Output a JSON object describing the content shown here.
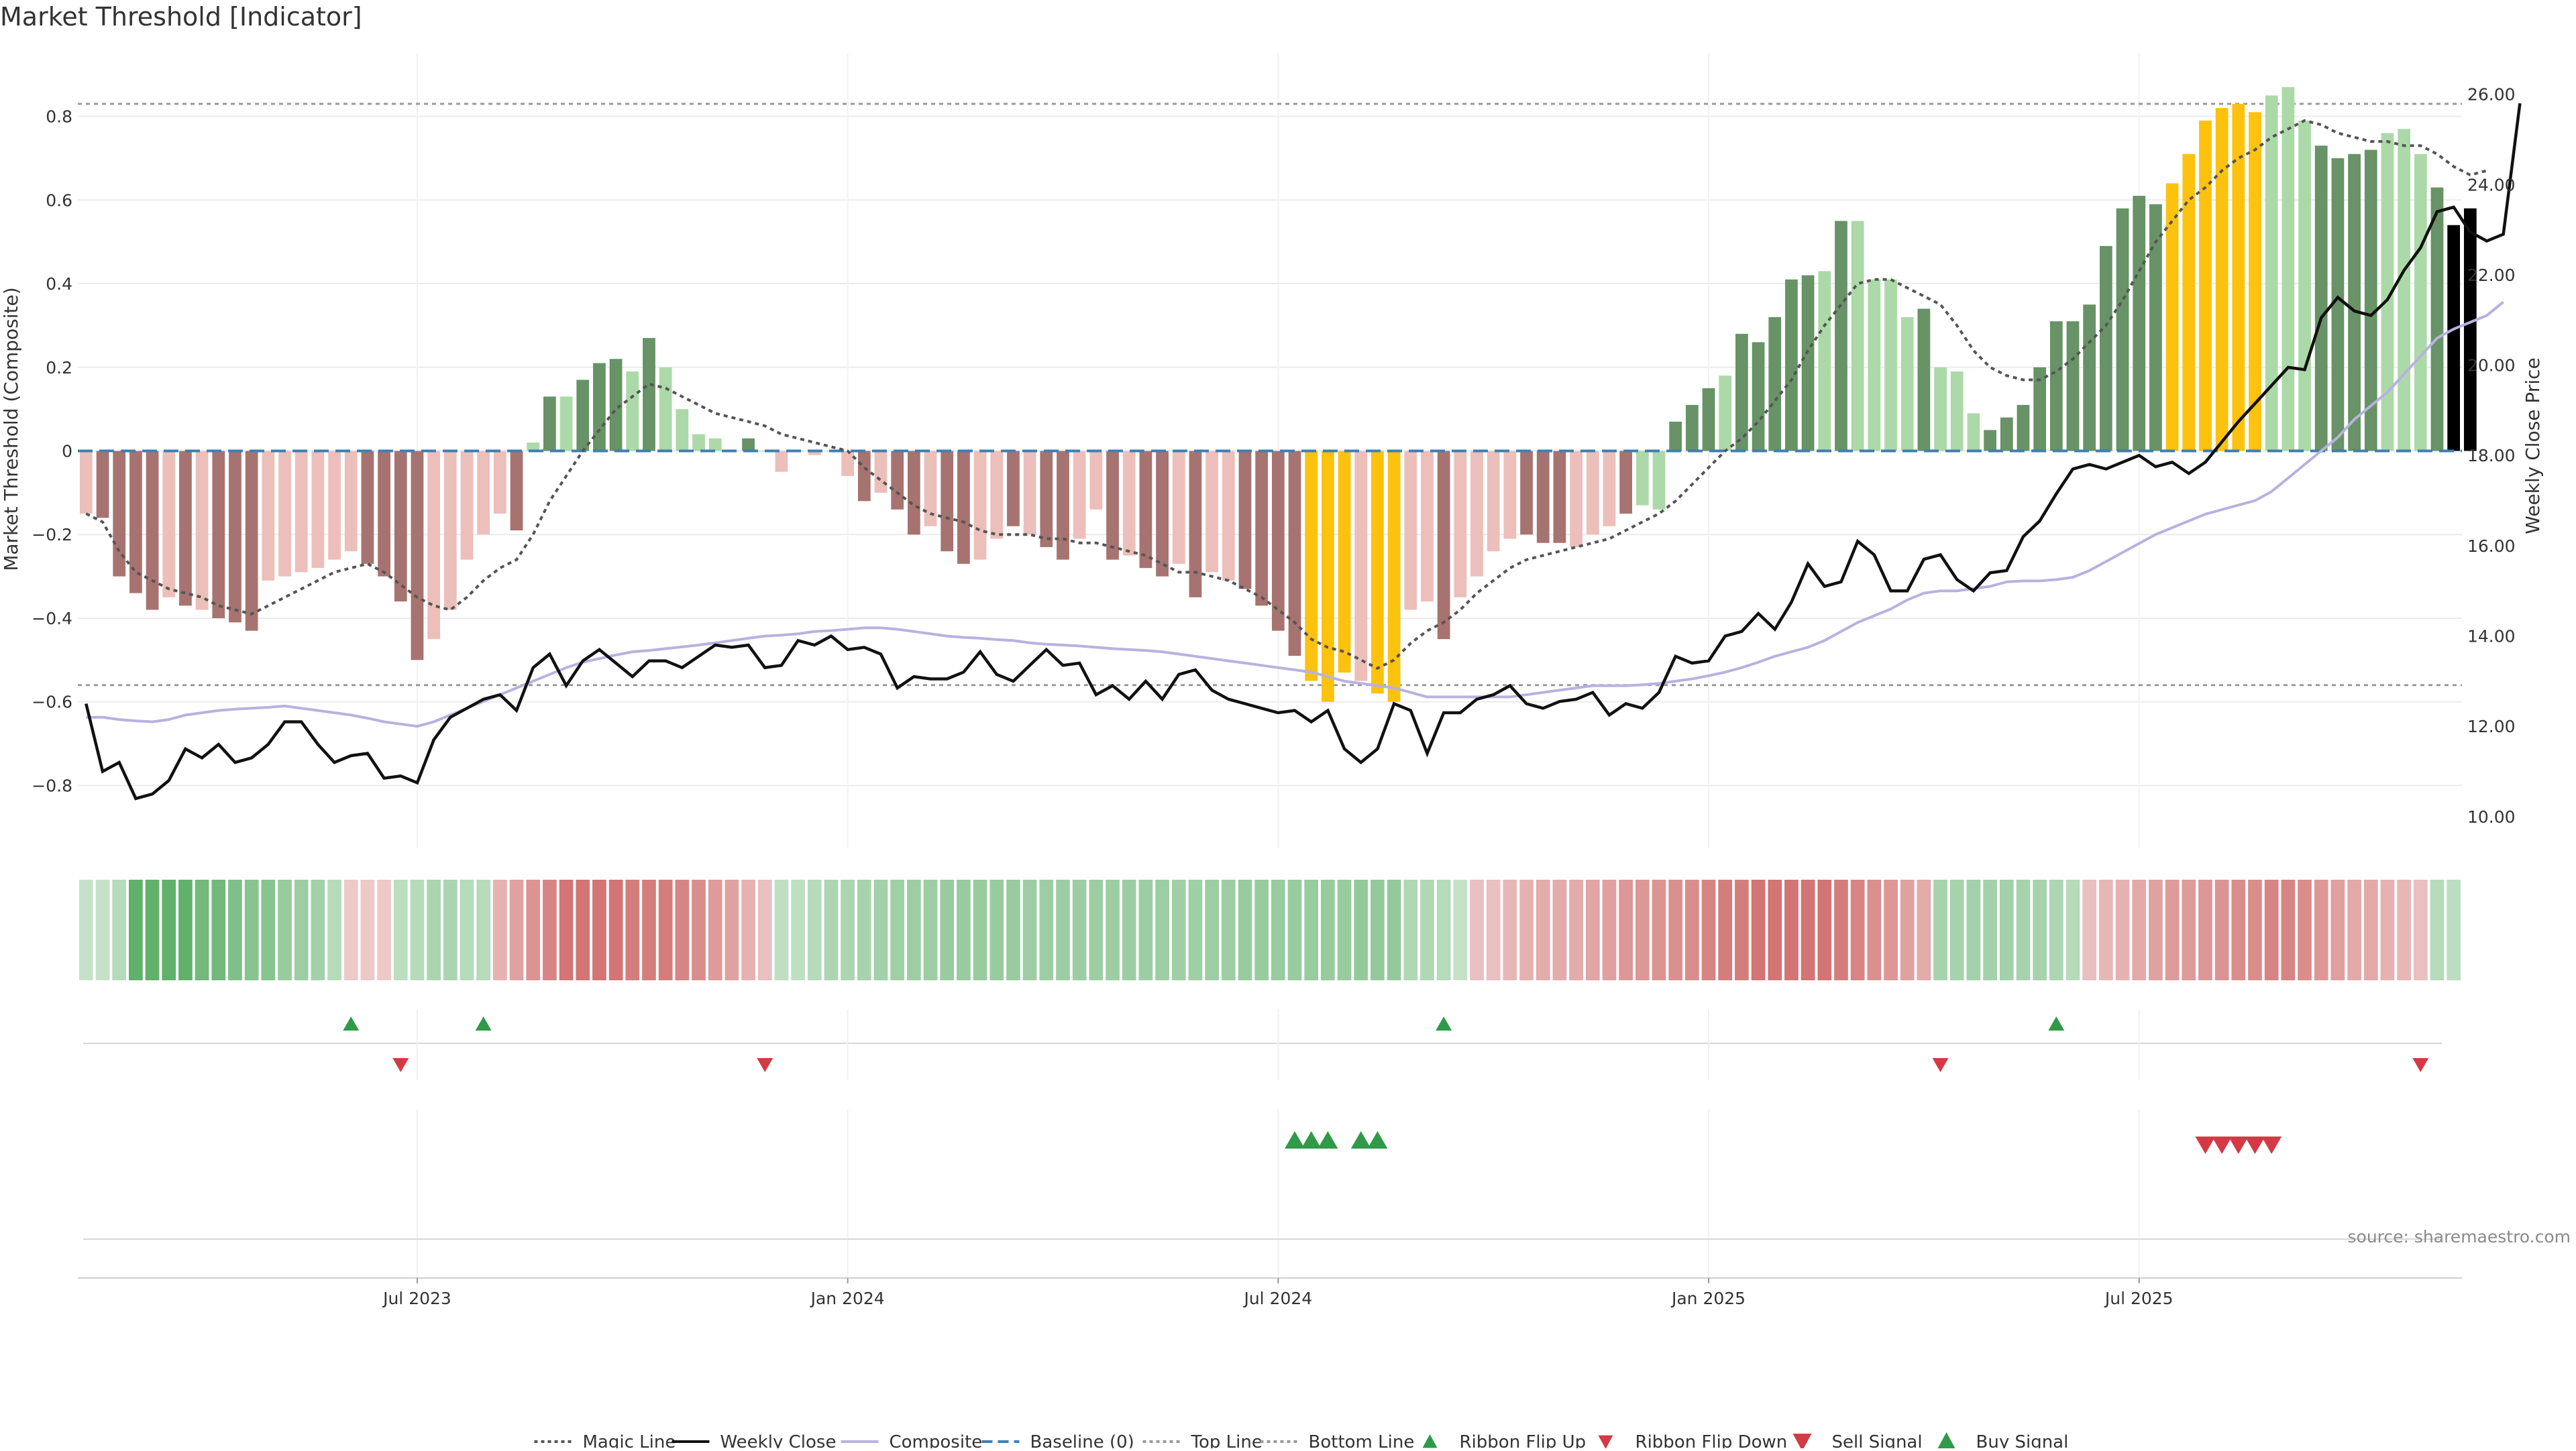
{
  "chart_data": {
    "type": "bar",
    "title": "Market Threshold [Indicator]",
    "ylabel_left": "Market Threshold (Composite)",
    "ylabel_right": "Weekly Close Price",
    "ylim_left": [
      -0.95,
      0.95
    ],
    "ylim_right": [
      9.3,
      26.9
    ],
    "left_ticks": [
      0.8,
      0.6,
      0.4,
      0.2,
      0,
      -0.2,
      -0.4,
      -0.6,
      -0.8
    ],
    "left_tick_labels": [
      "0.8",
      "0.6",
      "0.4",
      "0.2",
      "0",
      "−0.2",
      "−0.4",
      "−0.6",
      "−0.8"
    ],
    "right_ticks": [
      26,
      24,
      22,
      20,
      18,
      16,
      14,
      12,
      10
    ],
    "right_tick_labels": [
      "26.00",
      "24.00",
      "22.00",
      "20.00",
      "18.00",
      "16.00",
      "14.00",
      "12.00",
      "10.00"
    ],
    "x_tick_labels": [
      "Jul 2023",
      "Jan 2024",
      "Jul 2024",
      "Jan 2025",
      "Jul 2025"
    ],
    "x_tick_weeks": [
      20,
      46,
      72,
      98,
      124
    ],
    "weeks": 144,
    "top_line": 0.83,
    "bottom_line": -0.56,
    "baseline": 0,
    "bar_values": [
      -0.15,
      -0.16,
      -0.3,
      -0.34,
      -0.38,
      -0.35,
      -0.37,
      -0.38,
      -0.4,
      -0.41,
      -0.43,
      -0.31,
      -0.3,
      -0.29,
      -0.28,
      -0.26,
      -0.24,
      -0.27,
      -0.3,
      -0.36,
      -0.5,
      -0.45,
      -0.38,
      -0.26,
      -0.2,
      -0.15,
      -0.19,
      0.02,
      0.13,
      0.13,
      0.17,
      0.21,
      0.22,
      0.19,
      0.27,
      0.2,
      0.1,
      0.04,
      0.03,
      0,
      0.03,
      0,
      -0.05,
      0,
      -0.01,
      0,
      -0.06,
      -0.12,
      -0.1,
      -0.14,
      -0.2,
      -0.18,
      -0.24,
      -0.27,
      -0.26,
      -0.21,
      -0.18,
      -0.2,
      -0.23,
      -0.26,
      -0.21,
      -0.14,
      -0.26,
      -0.25,
      -0.28,
      -0.3,
      -0.27,
      -0.35,
      -0.29,
      -0.31,
      -0.33,
      -0.37,
      -0.43,
      -0.49,
      -0.55,
      -0.6,
      -0.53,
      -0.55,
      -0.58,
      -0.6,
      -0.38,
      -0.36,
      -0.45,
      -0.35,
      -0.3,
      -0.24,
      -0.21,
      -0.2,
      -0.22,
      -0.22,
      -0.23,
      -0.2,
      -0.18,
      -0.15,
      -0.13,
      -0.14,
      0.07,
      0.11,
      0.15,
      0.18,
      0.28,
      0.26,
      0.32,
      0.41,
      0.42,
      0.43,
      0.55,
      0.55,
      0.41,
      0.41,
      0.32,
      0.34,
      0.2,
      0.19,
      0.09,
      0.05,
      0.08,
      0.11,
      0.2,
      0.31,
      0.31,
      0.35,
      0.49,
      0.58,
      0.61,
      0.59,
      0.64,
      0.71,
      0.79,
      0.82,
      0.83,
      0.81,
      0.85,
      0.87,
      0.79,
      0.73,
      0.7,
      0.71,
      0.72,
      0.76,
      0.77,
      0.71,
      0.63,
      0.54,
      0.58
    ],
    "bar_categories": [
      "weak-neg",
      "strong-neg",
      "strong-neg",
      "strong-neg",
      "strong-neg",
      "weak-neg",
      "strong-neg",
      "weak-neg",
      "strong-neg",
      "strong-neg",
      "strong-neg",
      "weak-neg",
      "weak-neg",
      "weak-neg",
      "weak-neg",
      "weak-neg",
      "weak-neg",
      "strong-neg",
      "strong-neg",
      "strong-neg",
      "strong-neg",
      "weak-neg",
      "weak-neg",
      "weak-neg",
      "weak-neg",
      "weak-neg",
      "strong-neg",
      "weak-pos",
      "strong-pos",
      "weak-pos",
      "strong-pos",
      "strong-pos",
      "strong-pos",
      "weak-pos",
      "strong-pos",
      "weak-pos",
      "weak-pos",
      "weak-pos",
      "weak-pos",
      "weak-pos",
      "strong-pos",
      "weak-pos",
      "weak-neg",
      "weak-pos",
      "weak-neg",
      "weak-pos",
      "weak-neg",
      "strong-neg",
      "weak-neg",
      "strong-neg",
      "strong-neg",
      "weak-neg",
      "strong-neg",
      "strong-neg",
      "weak-neg",
      "weak-neg",
      "strong-neg",
      "weak-neg",
      "strong-neg",
      "strong-neg",
      "weak-neg",
      "weak-neg",
      "strong-neg",
      "weak-neg",
      "strong-neg",
      "strong-neg",
      "weak-neg",
      "strong-neg",
      "weak-neg",
      "weak-neg",
      "strong-neg",
      "strong-neg",
      "strong-neg",
      "strong-neg",
      "extreme",
      "extreme",
      "extreme",
      "weak-neg",
      "extreme",
      "extreme",
      "weak-neg",
      "weak-neg",
      "strong-neg",
      "weak-neg",
      "weak-neg",
      "weak-neg",
      "weak-neg",
      "strong-neg",
      "strong-neg",
      "strong-neg",
      "weak-neg",
      "weak-neg",
      "weak-neg",
      "strong-neg",
      "weak-pos",
      "weak-pos",
      "strong-pos",
      "strong-pos",
      "strong-pos",
      "weak-pos",
      "strong-pos",
      "strong-pos",
      "strong-pos",
      "strong-pos",
      "strong-pos",
      "weak-pos",
      "strong-pos",
      "weak-pos",
      "weak-pos",
      "weak-pos",
      "weak-pos",
      "strong-pos",
      "weak-pos",
      "weak-pos",
      "weak-pos",
      "strong-pos",
      "strong-pos",
      "strong-pos",
      "strong-pos",
      "strong-pos",
      "strong-pos",
      "strong-pos",
      "strong-pos",
      "strong-pos",
      "strong-pos",
      "strong-pos",
      "extreme",
      "extreme",
      "extreme",
      "extreme",
      "extreme",
      "extreme",
      "weak-pos",
      "weak-pos",
      "weak-pos",
      "strong-pos",
      "strong-pos",
      "strong-pos",
      "strong-pos",
      "weak-pos",
      "weak-pos",
      "weak-pos",
      "strong-pos"
    ],
    "magic_line": [
      -0.15,
      -0.17,
      -0.24,
      -0.29,
      -0.31,
      -0.33,
      -0.34,
      -0.35,
      -0.37,
      -0.38,
      -0.39,
      -0.37,
      -0.35,
      -0.33,
      -0.31,
      -0.29,
      -0.28,
      -0.27,
      -0.29,
      -0.32,
      -0.35,
      -0.37,
      -0.38,
      -0.35,
      -0.31,
      -0.28,
      -0.26,
      -0.2,
      -0.12,
      -0.06,
      0,
      0.05,
      0.1,
      0.13,
      0.16,
      0.15,
      0.13,
      0.11,
      0.09,
      0.08,
      0.07,
      0.06,
      0.04,
      0.03,
      0.02,
      0.01,
      0,
      -0.04,
      -0.07,
      -0.1,
      -0.13,
      -0.15,
      -0.16,
      -0.17,
      -0.19,
      -0.2,
      -0.2,
      -0.2,
      -0.21,
      -0.21,
      -0.22,
      -0.22,
      -0.23,
      -0.24,
      -0.25,
      -0.27,
      -0.29,
      -0.29,
      -0.3,
      -0.31,
      -0.33,
      -0.35,
      -0.38,
      -0.41,
      -0.45,
      -0.47,
      -0.48,
      -0.5,
      -0.52,
      -0.5,
      -0.46,
      -0.43,
      -0.41,
      -0.38,
      -0.34,
      -0.31,
      -0.28,
      -0.26,
      -0.25,
      -0.24,
      -0.23,
      -0.22,
      -0.21,
      -0.19,
      -0.17,
      -0.15,
      -0.12,
      -0.08,
      -0.04,
      0,
      0.03,
      0.07,
      0.12,
      0.17,
      0.24,
      0.3,
      0.35,
      0.4,
      0.41,
      0.41,
      0.39,
      0.37,
      0.35,
      0.3,
      0.24,
      0.2,
      0.18,
      0.17,
      0.17,
      0.19,
      0.22,
      0.26,
      0.3,
      0.36,
      0.43,
      0.5,
      0.55,
      0.6,
      0.63,
      0.67,
      0.7,
      0.72,
      0.75,
      0.77,
      0.79,
      0.78,
      0.76,
      0.75,
      0.74,
      0.74,
      0.73,
      0.73,
      0.71,
      0.68,
      0.66,
      0.67
    ],
    "composite": [
      12.2,
      12.2,
      12.15,
      12.12,
      12.1,
      12.15,
      12.25,
      12.3,
      12.35,
      12.38,
      12.4,
      12.42,
      12.45,
      12.4,
      12.35,
      12.3,
      12.25,
      12.18,
      12.1,
      12.05,
      12.0,
      12.1,
      12.25,
      12.4,
      12.55,
      12.7,
      12.85,
      13.0,
      13.15,
      13.3,
      13.42,
      13.5,
      13.58,
      13.65,
      13.68,
      13.72,
      13.76,
      13.8,
      13.85,
      13.9,
      13.95,
      14.0,
      14.02,
      14.05,
      14.1,
      14.12,
      14.15,
      14.18,
      14.18,
      14.15,
      14.1,
      14.05,
      14.0,
      13.97,
      13.95,
      13.92,
      13.9,
      13.85,
      13.82,
      13.8,
      13.78,
      13.75,
      13.72,
      13.7,
      13.68,
      13.65,
      13.6,
      13.55,
      13.5,
      13.45,
      13.4,
      13.35,
      13.3,
      13.25,
      13.2,
      13.1,
      13.0,
      12.95,
      12.9,
      12.85,
      12.75,
      12.65,
      12.65,
      12.65,
      12.65,
      12.65,
      12.65,
      12.7,
      12.75,
      12.8,
      12.85,
      12.9,
      12.9,
      12.9,
      12.92,
      12.95,
      13.0,
      13.05,
      13.12,
      13.2,
      13.3,
      13.42,
      13.55,
      13.65,
      13.75,
      13.9,
      14.1,
      14.3,
      14.45,
      14.6,
      14.8,
      14.95,
      15.0,
      15.0,
      15.05,
      15.1,
      15.2,
      15.22,
      15.22,
      15.25,
      15.3,
      15.45,
      15.65,
      15.85,
      16.05,
      16.25,
      16.4,
      16.55,
      16.7,
      16.8,
      16.9,
      17.0,
      17.2,
      17.5,
      17.8,
      18.1,
      18.4,
      18.8,
      19.1,
      19.4,
      19.8,
      20.2,
      20.6,
      20.8,
      20.95,
      21.1,
      21.4
    ],
    "weekly_close": [
      12.5,
      11.0,
      11.2,
      10.4,
      10.5,
      10.8,
      11.5,
      11.3,
      11.6,
      11.2,
      11.3,
      11.6,
      12.1,
      12.1,
      11.6,
      11.2,
      11.35,
      11.4,
      10.85,
      10.9,
      10.75,
      11.7,
      12.2,
      12.4,
      12.6,
      12.7,
      12.35,
      13.3,
      13.6,
      12.9,
      13.45,
      13.7,
      13.4,
      13.1,
      13.45,
      13.45,
      13.3,
      13.55,
      13.8,
      13.75,
      13.8,
      13.3,
      13.35,
      13.9,
      13.8,
      14.0,
      13.7,
      13.75,
      13.6,
      12.85,
      13.1,
      13.05,
      13.05,
      13.2,
      13.65,
      13.15,
      13.0,
      13.35,
      13.7,
      13.35,
      13.4,
      12.7,
      12.9,
      12.6,
      13.0,
      12.6,
      13.15,
      13.25,
      12.8,
      12.6,
      12.5,
      12.4,
      12.3,
      12.35,
      12.1,
      12.35,
      11.5,
      11.2,
      11.5,
      12.5,
      12.35,
      11.4,
      12.3,
      12.3,
      12.6,
      12.7,
      12.9,
      12.5,
      12.4,
      12.55,
      12.6,
      12.75,
      12.25,
      12.5,
      12.4,
      12.75,
      13.55,
      13.4,
      13.45,
      14.0,
      14.1,
      14.5,
      14.15,
      14.75,
      15.6,
      15.1,
      15.2,
      16.1,
      15.8,
      15.0,
      15.0,
      15.7,
      15.8,
      15.25,
      15.0,
      15.4,
      15.45,
      16.2,
      16.55,
      17.15,
      17.7,
      17.8,
      17.7,
      17.85,
      18.0,
      17.75,
      17.85,
      17.6,
      17.85,
      18.3,
      18.75,
      19.15,
      19.55,
      19.95,
      19.9,
      21.05,
      21.5,
      21.2,
      21.1,
      21.45,
      22.1,
      22.6,
      23.4,
      23.5,
      22.95,
      22.75,
      22.9,
      25.8
    ],
    "ribbon_values": [
      0.19,
      0.19,
      0.28,
      0.81,
      0.81,
      0.81,
      0.81,
      0.71,
      0.71,
      0.62,
      0.57,
      0.57,
      0.47,
      0.44,
      0.4,
      0.28,
      -0.21,
      -0.21,
      -0.21,
      0.25,
      0.28,
      0.35,
      0.35,
      0.28,
      0.28,
      -0.38,
      -0.49,
      -0.59,
      -0.7,
      -0.81,
      -0.81,
      -0.81,
      -0.81,
      -0.75,
      -0.75,
      -0.75,
      -0.7,
      -0.64,
      -0.54,
      -0.49,
      -0.38,
      -0.28,
      0.22,
      0.22,
      0.28,
      0.34,
      0.34,
      0.38,
      0.4,
      0.42,
      0.44,
      0.44,
      0.47,
      0.47,
      0.47,
      0.47,
      0.47,
      0.44,
      0.44,
      0.44,
      0.44,
      0.44,
      0.44,
      0.44,
      0.44,
      0.44,
      0.42,
      0.42,
      0.44,
      0.44,
      0.47,
      0.47,
      0.47,
      0.47,
      0.47,
      0.47,
      0.47,
      0.49,
      0.49,
      0.49,
      0.32,
      0.32,
      0.28,
      0.19,
      -0.28,
      -0.28,
      -0.34,
      -0.38,
      -0.42,
      -0.42,
      -0.42,
      -0.47,
      -0.51,
      -0.57,
      -0.57,
      -0.59,
      -0.62,
      -0.64,
      -0.7,
      -0.75,
      -0.75,
      -0.81,
      -0.81,
      -0.81,
      -0.81,
      -0.81,
      -0.75,
      -0.7,
      -0.62,
      -0.57,
      -0.49,
      -0.42,
      0.38,
      0.38,
      0.4,
      0.4,
      0.4,
      0.38,
      0.38,
      0.34,
      0.28,
      -0.28,
      -0.34,
      -0.38,
      -0.44,
      -0.49,
      -0.54,
      -0.54,
      -0.57,
      -0.59,
      -0.64,
      -0.64,
      -0.7,
      -0.7,
      -0.64,
      -0.57,
      -0.51,
      -0.44,
      -0.44,
      -0.38,
      -0.34,
      -0.28,
      0.28,
      0.25
    ],
    "ribbon_flip_up_weeks": [
      16,
      24,
      82,
      119
    ],
    "ribbon_flip_down_weeks": [
      19,
      41,
      112,
      141
    ],
    "buy_signal_weeks": [
      73,
      74,
      75,
      77,
      78
    ],
    "sell_signal_weeks": [
      128,
      129,
      130,
      131,
      132
    ],
    "colors": {
      "strong_neg": "#a77370",
      "weak_neg": "#ecbfba",
      "strong_pos": "#679366",
      "weak_pos": "#acd9a8",
      "extreme": "#fdc20d",
      "weekly_close": "#111111",
      "composite": "#b9b1e0",
      "magic_line": "#555555",
      "baseline": "#3d7fb3",
      "top_bottom_line": "#9a9a9a",
      "ribbon_pos": "#43a24f",
      "ribbon_neg": "#c95b59",
      "signal_up": "#2f9a47",
      "signal_down": "#d33a45"
    },
    "source": "source: sharemaestro.com",
    "legend": {
      "position": "bottom-center",
      "entries": [
        {
          "label": "Magic Line",
          "style": "dotted-line",
          "color": "#555555"
        },
        {
          "label": "Weekly Close",
          "style": "solid-line",
          "color": "#111111"
        },
        {
          "label": "Composite",
          "style": "solid-line",
          "color": "#b9b1e0"
        },
        {
          "label": "Baseline (0)",
          "style": "dashed-line",
          "color": "#3d7fb3"
        },
        {
          "label": "Top Line",
          "style": "dotted-line",
          "color": "#9a9a9a"
        },
        {
          "label": "Bottom Line",
          "style": "dotted-line",
          "color": "#9a9a9a"
        },
        {
          "label": "Ribbon Flip Up",
          "style": "triangle-up",
          "color": "#2f9a47"
        },
        {
          "label": "Ribbon Flip Down",
          "style": "triangle-down",
          "color": "#d33a45"
        },
        {
          "label": "Sell Signal",
          "style": "big-triangle-down",
          "color": "#d33a45"
        },
        {
          "label": "Buy Signal",
          "style": "big-triangle-up",
          "color": "#2f9a47"
        }
      ]
    }
  }
}
